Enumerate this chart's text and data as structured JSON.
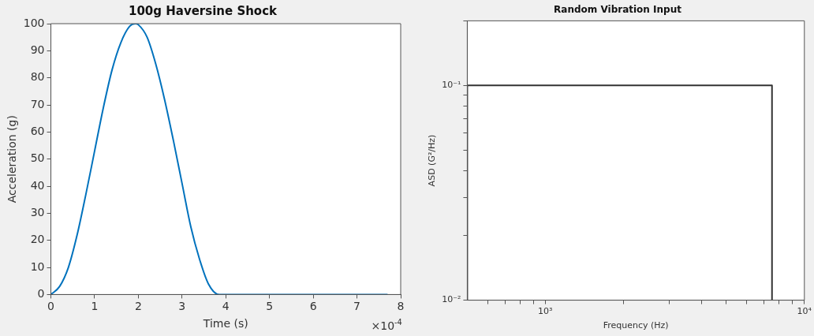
{
  "chart_data": [
    {
      "type": "line",
      "title": "100g Haversine Shock",
      "xlabel": "Time (s)",
      "ylabel": "Acceleration (g)",
      "x": [
        0,
        0.2,
        0.4,
        0.6,
        0.8,
        1,
        1.2,
        1.4,
        1.6,
        1.8,
        1.93,
        2,
        2.2,
        2.4,
        2.6,
        2.8,
        3,
        3.2,
        3.4,
        3.6,
        3.85,
        7.7
      ],
      "series": [
        {
          "color": "#0072bd",
          "values": [
            0,
            3,
            10,
            22,
            37,
            53,
            69,
            83,
            93,
            99,
            100,
            99.6,
            95,
            85,
            72,
            57,
            41,
            25,
            13,
            4,
            0,
            0
          ]
        }
      ],
      "xlim": [
        0,
        8
      ],
      "xticks": [
        0,
        1,
        2,
        3,
        4,
        5,
        6,
        7,
        8
      ],
      "ylim": [
        0,
        100
      ],
      "yticks": [
        0,
        10,
        20,
        30,
        40,
        50,
        60,
        70,
        80,
        90,
        100
      ],
      "annotations": [
        "×10$^{-4}$"
      ],
      "grid": false
    },
    {
      "type": "line",
      "title": "Random Vibration Input",
      "xlabel": "Frequency (Hz)",
      "ylabel": "ASD (G²/Hz)",
      "x": [
        500,
        500,
        7500,
        7500
      ],
      "series": [
        {
          "color": "#333333",
          "values": [
            0.01,
            0.1,
            0.1,
            0.01
          ]
        }
      ],
      "log": "xy",
      "xlim": [
        500,
        10000
      ],
      "xticks": [
        {
          "value": 600,
          "label": null
        },
        {
          "value": 700,
          "label": null
        },
        {
          "value": 800,
          "label": null
        },
        {
          "value": 900,
          "label": null
        },
        {
          "value": 1000,
          "label": "10³"
        },
        {
          "value": 2000,
          "label": null
        },
        {
          "value": 3000,
          "label": null
        },
        {
          "value": 4000,
          "label": null
        },
        {
          "value": 5000,
          "label": null
        },
        {
          "value": 6000,
          "label": null
        },
        {
          "value": 7000,
          "label": null
        },
        {
          "value": 8000,
          "label": null
        },
        {
          "value": 9000,
          "label": null
        },
        {
          "value": 10000,
          "label": "10⁴"
        }
      ],
      "ylim": [
        0.01,
        0.2
      ],
      "yticks": [
        {
          "value": 0.01,
          "label": "10⁻²"
        },
        {
          "value": 0.02,
          "label": null
        },
        {
          "value": 0.03,
          "label": null
        },
        {
          "value": 0.04,
          "label": null
        },
        {
          "value": 0.05,
          "label": null
        },
        {
          "value": 0.06,
          "label": null
        },
        {
          "value": 0.07,
          "label": null
        },
        {
          "value": 0.08,
          "label": null
        },
        {
          "value": 0.09,
          "label": null
        },
        {
          "value": 0.1,
          "label": "10⁻¹"
        },
        {
          "value": 0.2,
          "label": null
        }
      ],
      "grid": false
    }
  ]
}
